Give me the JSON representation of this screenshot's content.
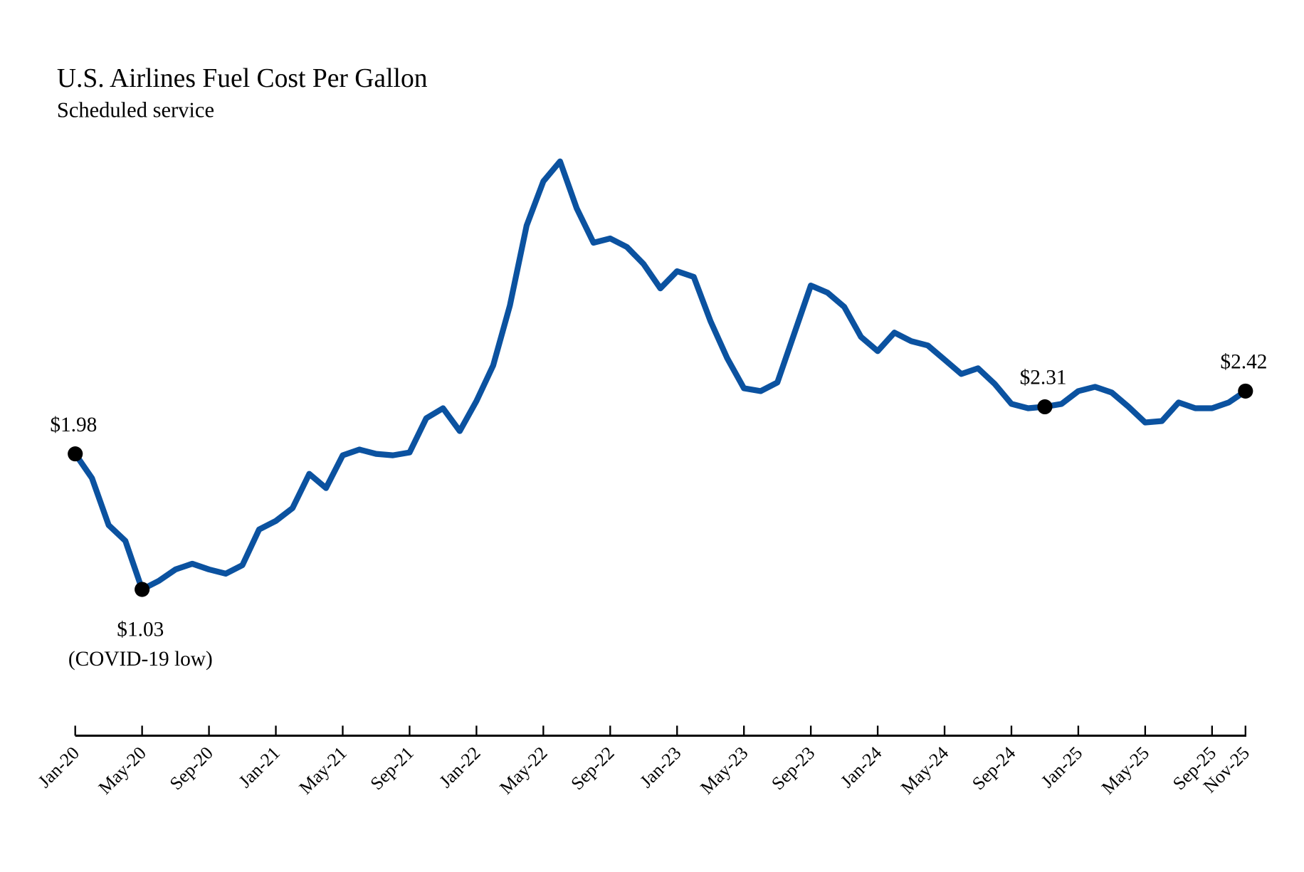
{
  "chart_data": {
    "type": "line",
    "title": "U.S. Airlines Fuel Cost Per Gallon",
    "subtitle": "Scheduled service",
    "xlabel": "",
    "ylabel": "",
    "ylim": [
      1.03,
      4.03
    ],
    "grid": false,
    "line_color": "#0b52a0",
    "tick_labels": [
      "Jan-20",
      "May-20",
      "Sep-20",
      "Jan-21",
      "May-21",
      "Sep-21",
      "Jan-22",
      "May-22",
      "Sep-22",
      "Jan-23",
      "May-23",
      "Sep-23",
      "Jan-24",
      "May-24",
      "Sep-24",
      "Jan-25",
      "May-25",
      "Sep-25",
      "Nov-25"
    ],
    "tick_month_index": [
      0,
      4,
      8,
      12,
      16,
      20,
      24,
      28,
      32,
      36,
      40,
      44,
      48,
      52,
      56,
      60,
      64,
      68,
      70
    ],
    "x_start": "Jan-20",
    "values": [
      1.98,
      1.81,
      1.48,
      1.37,
      1.03,
      1.09,
      1.17,
      1.21,
      1.17,
      1.14,
      1.2,
      1.45,
      1.51,
      1.6,
      1.84,
      1.74,
      1.97,
      2.01,
      1.98,
      1.97,
      1.99,
      2.23,
      2.3,
      2.14,
      2.35,
      2.6,
      3.02,
      3.58,
      3.89,
      4.03,
      3.7,
      3.46,
      3.49,
      3.43,
      3.31,
      3.14,
      3.26,
      3.22,
      2.91,
      2.65,
      2.44,
      2.42,
      2.48,
      2.82,
      3.16,
      3.11,
      3.01,
      2.8,
      2.7,
      2.83,
      2.77,
      2.74,
      2.64,
      2.54,
      2.58,
      2.47,
      2.33,
      2.3,
      2.31,
      2.33,
      2.42,
      2.45,
      2.41,
      2.31,
      2.2,
      2.21,
      2.34,
      2.3,
      2.3,
      2.34,
      2.42
    ],
    "annotations": [
      {
        "month_index": 0,
        "text": "$1.98",
        "note": "",
        "position": "above"
      },
      {
        "month_index": 4,
        "text": "$1.03",
        "note": "(COVID-19 low)",
        "position": "below"
      },
      {
        "month_index": 58,
        "text": "$2.31",
        "note": "",
        "position": "above"
      },
      {
        "month_index": 70,
        "text": "$2.42",
        "note": "",
        "position": "above"
      }
    ]
  }
}
